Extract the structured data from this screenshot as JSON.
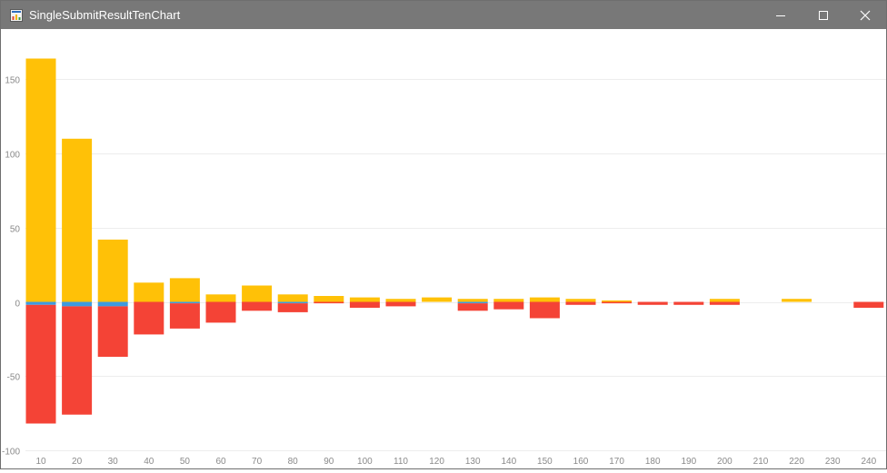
{
  "window": {
    "title": "SingleSubmitResultTenChart",
    "app_icon": "chart-app-icon",
    "controls": {
      "minimize_icon": "minimize-icon",
      "maximize_icon": "maximize-icon",
      "close_icon": "close-icon"
    }
  },
  "colors": {
    "titlebar": "#787878",
    "yellow": "#FFC107",
    "blue": "#3D9BE0",
    "red": "#F44336",
    "grid": "#EDEDED",
    "tick_text": "#8A8A8A"
  },
  "chart_data": {
    "type": "bar",
    "stacked": true,
    "title": "",
    "xlabel": "",
    "ylabel": "",
    "ylim": [
      -100,
      170
    ],
    "yticks": [
      -100,
      -50,
      0,
      50,
      100,
      150
    ],
    "grid": true,
    "legend": "none",
    "categories": [
      "10",
      "20",
      "30",
      "40",
      "50",
      "60",
      "70",
      "80",
      "90",
      "100",
      "110",
      "120",
      "130",
      "140",
      "150",
      "160",
      "170",
      "180",
      "190",
      "200",
      "210",
      "220",
      "230",
      "240"
    ],
    "series": [
      {
        "color": "#FFC107",
        "values": [
          164,
          110,
          42,
          13,
          16,
          5,
          11,
          5,
          4,
          3,
          2,
          3,
          2,
          2,
          3,
          2,
          1,
          0,
          0,
          2,
          0,
          2,
          0,
          0
        ]
      },
      {
        "color": "#3D9BE0",
        "values": [
          -2,
          -3,
          -3,
          0,
          -1,
          0,
          0,
          -1,
          0,
          0,
          0,
          0,
          -1,
          0,
          0,
          0,
          0,
          0,
          0,
          0,
          0,
          0,
          0,
          0
        ]
      },
      {
        "color": "#F44336",
        "values": [
          -80,
          -73,
          -34,
          -22,
          -17,
          -14,
          -6,
          -6,
          -1,
          -4,
          -3,
          0,
          -5,
          -5,
          -11,
          -2,
          -1,
          -2,
          -2,
          -2,
          0,
          0,
          0,
          -4
        ]
      }
    ]
  }
}
